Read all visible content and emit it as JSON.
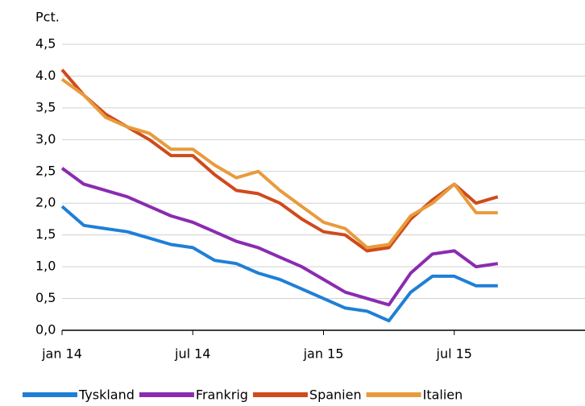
{
  "chart_data": {
    "type": "line",
    "y_label": "Pct.",
    "x": [
      "2014-01",
      "2014-02",
      "2014-03",
      "2014-04",
      "2014-05",
      "2014-06",
      "2014-07",
      "2014-08",
      "2014-09",
      "2014-10",
      "2014-11",
      "2014-12",
      "2015-01",
      "2015-02",
      "2015-03",
      "2015-04",
      "2015-05",
      "2015-06",
      "2015-07",
      "2015-08",
      "2015-09"
    ],
    "series": [
      {
        "name": "Tyskland",
        "color": "#1f7fd6",
        "values": [
          1.95,
          1.65,
          1.6,
          1.55,
          1.45,
          1.35,
          1.3,
          1.1,
          1.05,
          0.9,
          0.8,
          0.65,
          0.5,
          0.35,
          0.3,
          0.15,
          0.6,
          0.85,
          0.85,
          0.7,
          0.7
        ]
      },
      {
        "name": "Frankrig",
        "color": "#8b2bb0",
        "values": [
          2.55,
          2.3,
          2.2,
          2.1,
          1.95,
          1.8,
          1.7,
          1.55,
          1.4,
          1.3,
          1.15,
          1.0,
          0.8,
          0.6,
          0.5,
          0.4,
          0.9,
          1.2,
          1.25,
          1.0,
          1.05
        ]
      },
      {
        "name": "Spanien",
        "color": "#cf4a1c",
        "values": [
          4.1,
          3.7,
          3.4,
          3.2,
          3.0,
          2.75,
          2.75,
          2.45,
          2.2,
          2.15,
          2.0,
          1.75,
          1.55,
          1.5,
          1.25,
          1.3,
          1.75,
          2.05,
          2.3,
          2.0,
          2.1
        ]
      },
      {
        "name": "Italien",
        "color": "#e89b3c",
        "values": [
          3.95,
          3.7,
          3.35,
          3.2,
          3.1,
          2.85,
          2.85,
          2.6,
          2.4,
          2.5,
          2.2,
          1.95,
          1.7,
          1.6,
          1.3,
          1.35,
          1.8,
          2.0,
          2.3,
          1.85,
          1.85
        ]
      }
    ],
    "xlim": [
      "2014-01",
      "2016-01"
    ],
    "xticks": [
      {
        "value": "2014-01",
        "label": "jan 14"
      },
      {
        "value": "2014-07",
        "label": "jul 14"
      },
      {
        "value": "2015-01",
        "label": "jan 15"
      },
      {
        "value": "2015-07",
        "label": "jul 15"
      }
    ],
    "ylim": [
      0,
      4.5
    ],
    "yticks": [
      {
        "value": 0,
        "label": "0,0"
      },
      {
        "value": 0.5,
        "label": "0,5"
      },
      {
        "value": 1,
        "label": "1,0"
      },
      {
        "value": 1.5,
        "label": "1,5"
      },
      {
        "value": 2,
        "label": "2,0"
      },
      {
        "value": 2.5,
        "label": "2,5"
      },
      {
        "value": 3,
        "label": "3,0"
      },
      {
        "value": 3.5,
        "label": "3,5"
      },
      {
        "value": 4,
        "label": "4.0"
      },
      {
        "value": 4.5,
        "label": "4,5"
      }
    ],
    "grid": true,
    "legend": "bottom"
  }
}
